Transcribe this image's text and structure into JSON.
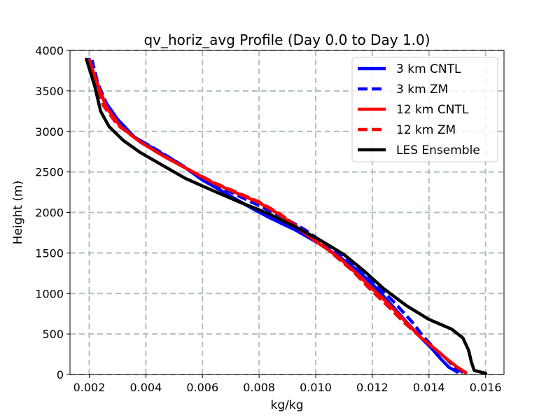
{
  "chart_data": {
    "type": "line",
    "title": "qv_horiz_avg Profile (Day 0.0 to Day 1.0)",
    "xlabel": "kg/kg",
    "ylabel": "Height (m)",
    "xlim": [
      0.00132,
      0.01665
    ],
    "ylim": [
      0,
      4000
    ],
    "xticks": [
      0.002,
      0.004,
      0.006,
      0.008,
      0.01,
      0.012,
      0.014,
      0.016
    ],
    "xtick_labels": [
      "0.002",
      "0.004",
      "0.006",
      "0.008",
      "0.010",
      "0.012",
      "0.014",
      "0.016"
    ],
    "yticks": [
      0,
      500,
      1000,
      1500,
      2000,
      2500,
      3000,
      3500,
      4000
    ],
    "ytick_labels": [
      "0",
      "500",
      "1000",
      "1500",
      "2000",
      "2500",
      "3000",
      "3500",
      "4000"
    ],
    "grid": true,
    "grid_style": "dashed",
    "legend_position": "top-right",
    "series": [
      {
        "name": "3 km CNTL",
        "color": "#0000ff",
        "dash": "solid",
        "points": [
          [
            0.015,
            30
          ],
          [
            0.0147,
            90
          ],
          [
            0.0144,
            200
          ],
          [
            0.0141,
            320
          ],
          [
            0.0137,
            460
          ],
          [
            0.0132,
            650
          ],
          [
            0.0127,
            850
          ],
          [
            0.0121,
            1080
          ],
          [
            0.0115,
            1280
          ],
          [
            0.0108,
            1460
          ],
          [
            0.0101,
            1620
          ],
          [
            0.0093,
            1780
          ],
          [
            0.0084,
            1930
          ],
          [
            0.0077,
            2060
          ],
          [
            0.0069,
            2220
          ],
          [
            0.006,
            2400
          ],
          [
            0.0052,
            2600
          ],
          [
            0.0044,
            2760
          ],
          [
            0.0036,
            2930
          ],
          [
            0.003,
            3150
          ],
          [
            0.0025,
            3400
          ],
          [
            0.0022,
            3650
          ],
          [
            0.002,
            3890
          ]
        ]
      },
      {
        "name": "3 km ZM",
        "color": "#0000ff",
        "dash": "dashed",
        "points": [
          [
            0.0152,
            25
          ],
          [
            0.0149,
            90
          ],
          [
            0.0146,
            200
          ],
          [
            0.0142,
            320
          ],
          [
            0.0138,
            470
          ],
          [
            0.0134,
            650
          ],
          [
            0.0128,
            880
          ],
          [
            0.0122,
            1090
          ],
          [
            0.0116,
            1290
          ],
          [
            0.011,
            1460
          ],
          [
            0.0103,
            1620
          ],
          [
            0.0096,
            1790
          ],
          [
            0.0088,
            1950
          ],
          [
            0.0079,
            2100
          ],
          [
            0.007,
            2250
          ],
          [
            0.0061,
            2400
          ],
          [
            0.0052,
            2600
          ],
          [
            0.0044,
            2770
          ],
          [
            0.0036,
            2930
          ],
          [
            0.003,
            3120
          ],
          [
            0.0026,
            3350
          ],
          [
            0.0023,
            3600
          ],
          [
            0.0021,
            3880
          ]
        ]
      },
      {
        "name": "12 km CNTL",
        "color": "#ff0000",
        "dash": "solid",
        "points": [
          [
            0.0153,
            25
          ],
          [
            0.015,
            90
          ],
          [
            0.0146,
            200
          ],
          [
            0.0142,
            320
          ],
          [
            0.0137,
            460
          ],
          [
            0.0132,
            640
          ],
          [
            0.0126,
            860
          ],
          [
            0.012,
            1060
          ],
          [
            0.0114,
            1260
          ],
          [
            0.0108,
            1450
          ],
          [
            0.0101,
            1620
          ],
          [
            0.0094,
            1800
          ],
          [
            0.0087,
            1980
          ],
          [
            0.008,
            2120
          ],
          [
            0.0072,
            2240
          ],
          [
            0.0064,
            2360
          ],
          [
            0.0055,
            2530
          ],
          [
            0.0046,
            2700
          ],
          [
            0.0038,
            2870
          ],
          [
            0.0031,
            3060
          ],
          [
            0.0026,
            3300
          ],
          [
            0.0023,
            3580
          ],
          [
            0.002,
            3880
          ]
        ]
      },
      {
        "name": "12 km ZM",
        "color": "#ff0000",
        "dash": "dashed",
        "points": [
          [
            0.0153,
            20
          ],
          [
            0.015,
            90
          ],
          [
            0.0146,
            200
          ],
          [
            0.0142,
            320
          ],
          [
            0.0137,
            460
          ],
          [
            0.0131,
            650
          ],
          [
            0.0125,
            860
          ],
          [
            0.0119,
            1060
          ],
          [
            0.0113,
            1280
          ],
          [
            0.0107,
            1460
          ],
          [
            0.0101,
            1640
          ],
          [
            0.0094,
            1810
          ],
          [
            0.0087,
            1990
          ],
          [
            0.008,
            2130
          ],
          [
            0.0072,
            2250
          ],
          [
            0.0064,
            2370
          ],
          [
            0.0055,
            2530
          ],
          [
            0.0046,
            2700
          ],
          [
            0.0038,
            2870
          ],
          [
            0.003,
            3080
          ],
          [
            0.0025,
            3320
          ],
          [
            0.0022,
            3600
          ],
          [
            0.002,
            3880
          ]
        ]
      },
      {
        "name": "LES Ensemble",
        "color": "#000000",
        "dash": "solid",
        "points": [
          [
            0.016,
            15
          ],
          [
            0.0156,
            50
          ],
          [
            0.0155,
            150
          ],
          [
            0.0154,
            300
          ],
          [
            0.0152,
            450
          ],
          [
            0.0148,
            560
          ],
          [
            0.014,
            680
          ],
          [
            0.0132,
            850
          ],
          [
            0.0124,
            1060
          ],
          [
            0.0117,
            1280
          ],
          [
            0.011,
            1480
          ],
          [
            0.0102,
            1650
          ],
          [
            0.0093,
            1820
          ],
          [
            0.0083,
            1990
          ],
          [
            0.0073,
            2130
          ],
          [
            0.0063,
            2280
          ],
          [
            0.0054,
            2420
          ],
          [
            0.0046,
            2580
          ],
          [
            0.0038,
            2740
          ],
          [
            0.0032,
            2890
          ],
          [
            0.0027,
            3060
          ],
          [
            0.0024,
            3250
          ],
          [
            0.0022,
            3550
          ],
          [
            0.0019,
            3890
          ]
        ]
      }
    ]
  }
}
